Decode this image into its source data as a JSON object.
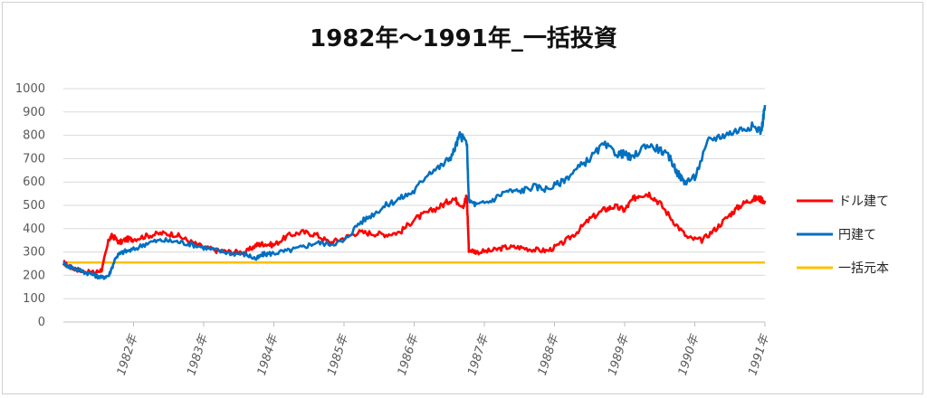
{
  "chart_data": {
    "type": "line",
    "title": "1982年～1991年_一括投資",
    "xlabel": "",
    "ylabel": "",
    "ylim": [
      0,
      1000
    ],
    "yticks": [
      0,
      100,
      200,
      300,
      400,
      500,
      600,
      700,
      800,
      900,
      1000
    ],
    "xlim": [
      1981,
      1991
    ],
    "xticks": [
      "1982年",
      "1983年",
      "1984年",
      "1985年",
      "1986年",
      "1987年",
      "1988年",
      "1989年",
      "1990年",
      "1991年"
    ],
    "grid": true,
    "legend_position": "right",
    "series": [
      {
        "name": "ドル建て",
        "color": "#ff0000",
        "x": [
          1981.0,
          1981.1,
          1981.2,
          1981.3,
          1981.45,
          1981.55,
          1981.65,
          1981.7,
          1981.8,
          1981.9,
          1982.0,
          1982.2,
          1982.4,
          1982.6,
          1982.8,
          1983.0,
          1983.2,
          1983.4,
          1983.6,
          1983.75,
          1983.85,
          1984.0,
          1984.2,
          1984.4,
          1984.6,
          1984.8,
          1985.0,
          1985.2,
          1985.4,
          1985.6,
          1985.8,
          1986.0,
          1986.2,
          1986.4,
          1986.55,
          1986.7,
          1986.75,
          1986.78,
          1986.9,
          1987.1,
          1987.3,
          1987.5,
          1987.7,
          1987.9,
          1988.1,
          1988.3,
          1988.5,
          1988.7,
          1988.85,
          1989.0,
          1989.1,
          1989.2,
          1989.35,
          1989.5,
          1989.7,
          1989.9,
          1990.1,
          1990.3,
          1990.5,
          1990.65,
          1990.8,
          1990.9,
          1991.0
        ],
        "y": [
          255,
          235,
          225,
          215,
          212,
          225,
          355,
          370,
          340,
          355,
          355,
          370,
          380,
          375,
          345,
          320,
          305,
          300,
          300,
          330,
          335,
          330,
          370,
          385,
          375,
          340,
          360,
          385,
          380,
          375,
          385,
          440,
          470,
          500,
          530,
          500,
          540,
          310,
          300,
          305,
          320,
          320,
          310,
          305,
          335,
          380,
          440,
          480,
          495,
          480,
          520,
          545,
          550,
          510,
          430,
          360,
          350,
          400,
          460,
          500,
          525,
          530,
          520
        ]
      },
      {
        "name": "円建て",
        "color": "#0070c0",
        "x": [
          1981.0,
          1981.15,
          1981.3,
          1981.45,
          1981.55,
          1981.65,
          1981.75,
          1981.85,
          1982.0,
          1982.2,
          1982.4,
          1982.6,
          1982.8,
          1983.0,
          1983.2,
          1983.4,
          1983.6,
          1983.75,
          1983.85,
          1984.0,
          1984.2,
          1984.4,
          1984.6,
          1984.8,
          1985.0,
          1985.2,
          1985.4,
          1985.6,
          1985.8,
          1986.0,
          1986.2,
          1986.4,
          1986.55,
          1986.65,
          1986.75,
          1986.78,
          1986.9,
          1987.1,
          1987.3,
          1987.5,
          1987.7,
          1987.9,
          1988.1,
          1988.3,
          1988.5,
          1988.7,
          1988.9,
          1989.0,
          1989.1,
          1989.3,
          1989.5,
          1989.65,
          1989.75,
          1989.85,
          1990.0,
          1990.2,
          1990.4,
          1990.6,
          1990.8,
          1990.95,
          1991.0
        ],
        "y": [
          250,
          230,
          215,
          200,
          190,
          200,
          280,
          300,
          310,
          340,
          350,
          345,
          335,
          320,
          305,
          295,
          290,
          270,
          290,
          295,
          305,
          320,
          340,
          335,
          345,
          420,
          460,
          500,
          530,
          560,
          640,
          670,
          720,
          800,
          770,
          520,
          500,
          520,
          560,
          560,
          580,
          570,
          600,
          650,
          700,
          760,
          720,
          720,
          700,
          760,
          740,
          700,
          640,
          600,
          620,
          780,
          800,
          820,
          840,
          820,
          930
        ]
      },
      {
        "name": "一括元本",
        "color": "#ffc000",
        "x": [
          1981.0,
          1991.0
        ],
        "y": [
          255,
          255
        ]
      }
    ]
  }
}
